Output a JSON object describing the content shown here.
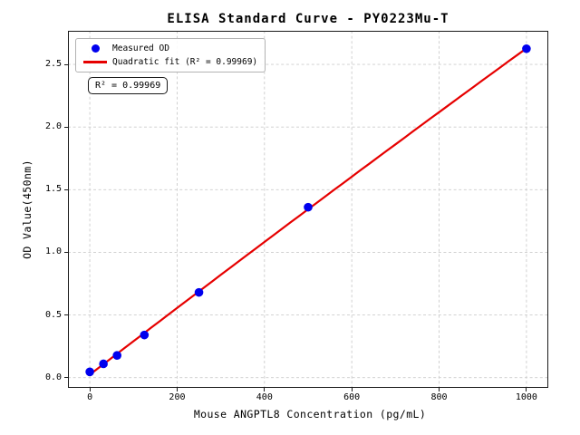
{
  "chart_data": {
    "type": "scatter",
    "title": "ELISA Standard Curve - PY0223Mu-T",
    "xlabel": "Mouse ANGPTL8 Concentration (pg/mL)",
    "ylabel": "OD Value(450nm)",
    "xlim": [
      -50,
      1050
    ],
    "ylim": [
      -0.082,
      2.768
    ],
    "x_ticks": [
      0,
      200,
      400,
      600,
      800,
      1000
    ],
    "y_ticks": [
      0.0,
      0.5,
      1.0,
      1.5,
      2.0,
      2.5
    ],
    "y_tick_labels": [
      "0.0",
      "0.5",
      "1.0",
      "1.5",
      "2.0",
      "2.5"
    ],
    "grid": true,
    "legend_position": "upper left",
    "series": [
      {
        "name": "Measured OD",
        "type": "scatter",
        "color": "#0000ee",
        "x": [
          0,
          31.25,
          62.5,
          125,
          250,
          500,
          1000
        ],
        "y": [
          0.046,
          0.11,
          0.177,
          0.34,
          0.68,
          1.36,
          2.625
        ]
      },
      {
        "name": "Quadratic fit (R² = 0.99969)",
        "type": "line",
        "fit": "quadratic",
        "color": "#e60000",
        "r_squared": 0.99969
      }
    ]
  },
  "legend": {
    "items": [
      {
        "label": "Measured OD",
        "marker": "dot-icon"
      },
      {
        "label": "Quadratic fit (R² = 0.99969)",
        "marker": "line-icon"
      }
    ]
  },
  "annotation": {
    "text": "R² = 0.99969"
  },
  "colors": {
    "point": "#0000ee",
    "fit_line": "#e60000",
    "grid": "#cccccc",
    "frame": "#1a1a1a",
    "legend_border": "#b3b3b3",
    "text": "#000000"
  }
}
